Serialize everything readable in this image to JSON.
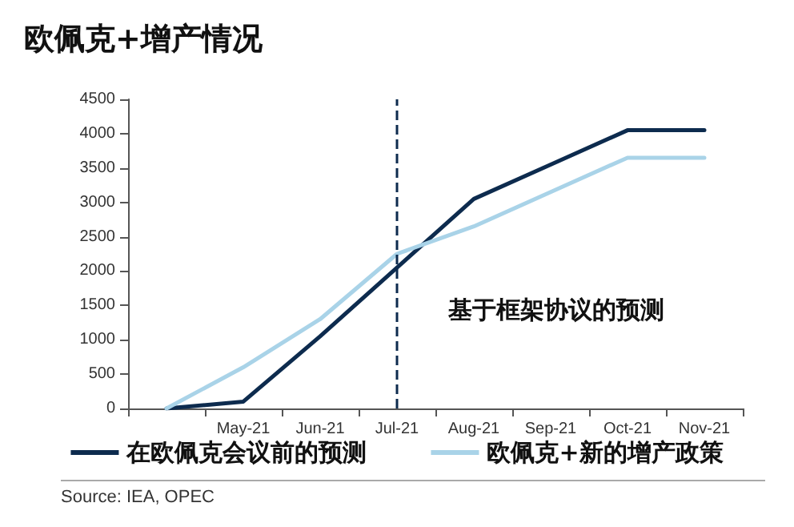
{
  "chart_data": {
    "type": "line",
    "title": "欧佩克+增产情况",
    "categories": [
      null,
      "May-21",
      "Jun-21",
      "Jul-21",
      "Aug-21",
      "Sep-21",
      "Oct-21",
      "Nov-21"
    ],
    "series": [
      {
        "name": "在欧佩克会议前的预测",
        "color": "#0d2b4e",
        "values": [
          0,
          100,
          1050,
          2050,
          3050,
          3550,
          4050,
          4050
        ]
      },
      {
        "name": "欧佩克+新的增产政策",
        "color": "#a9d3e8",
        "values": [
          0,
          600,
          1300,
          2250,
          2650,
          3150,
          3650,
          3650
        ]
      }
    ],
    "ylim": [
      0,
      4500
    ],
    "yticks": [
      0,
      500,
      1000,
      1500,
      2000,
      2500,
      3000,
      3500,
      4000,
      4500
    ],
    "ref_lines": [
      {
        "axis": "x",
        "value": "Jul-21",
        "label": "基于框架协议的预测",
        "color": "#0d2b4e",
        "line_style": "dashed"
      }
    ],
    "annotations": [
      "Source: IEA, OPEC"
    ],
    "grid": false,
    "legend": "bottom",
    "marker": "none",
    "line_style": "solid"
  }
}
